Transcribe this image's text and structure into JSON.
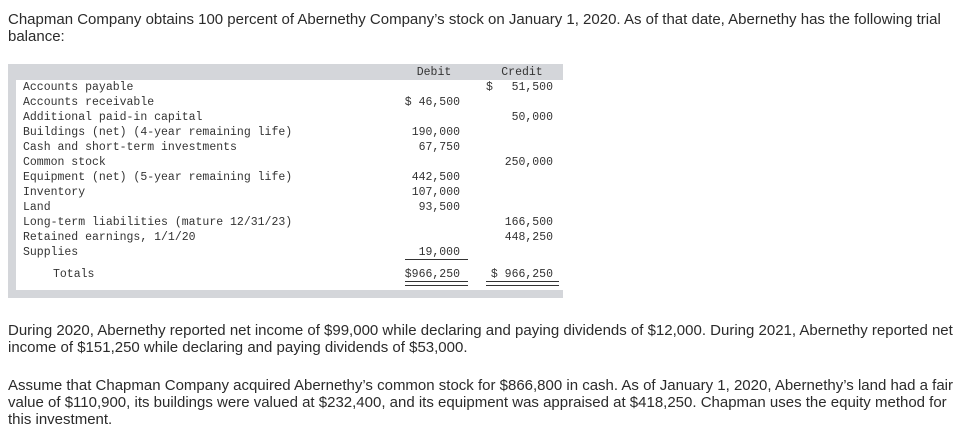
{
  "intro": "Chapman Company obtains 100 percent of Abernethy Company’s stock on January 1, 2020. As of that date, Abernethy has the following trial balance:",
  "table": {
    "headers": {
      "debit": "Debit",
      "credit": "Credit"
    },
    "rows": [
      {
        "name": "Accounts payable",
        "debit": "",
        "credit": "51,500",
        "credit_currency": "$"
      },
      {
        "name": "Accounts receivable",
        "debit": "$ 46,500",
        "credit": ""
      },
      {
        "name": "Additional paid-in capital",
        "debit": "",
        "credit": "50,000"
      },
      {
        "name": "Buildings (net) (4-year remaining life)",
        "debit": "190,000",
        "credit": ""
      },
      {
        "name": "Cash and short-term investments",
        "debit": "67,750",
        "credit": ""
      },
      {
        "name": "Common stock",
        "debit": "",
        "credit": "250,000"
      },
      {
        "name": "Equipment (net) (5-year remaining life)",
        "debit": "442,500",
        "credit": ""
      },
      {
        "name": "Inventory",
        "debit": "107,000",
        "credit": ""
      },
      {
        "name": "Land",
        "debit": "93,500",
        "credit": ""
      },
      {
        "name": "Long-term liabilities (mature 12/31/23)",
        "debit": "",
        "credit": "166,500"
      },
      {
        "name": "Retained earnings, 1/1/20",
        "debit": "",
        "credit": "448,250"
      },
      {
        "name": "Supplies",
        "debit": "19,000",
        "credit": ""
      }
    ],
    "totals": {
      "name": "Totals",
      "debit": "$966,250",
      "credit": "$ 966,250"
    }
  },
  "para2": "During 2020, Abernethy reported net income of $99,000 while declaring and paying dividends of $12,000. During 2021, Abernethy reported net income of $151,250 while declaring and paying dividends of $53,000.",
  "para3": "Assume that Chapman Company acquired Abernethy’s common stock for $866,800 in cash. As of January 1, 2020, Abernethy’s land had a fair value of $110,900, its buildings were valued at $232,400, and its equipment was appraised at $418,250. Chapman uses the equity method for this investment."
}
